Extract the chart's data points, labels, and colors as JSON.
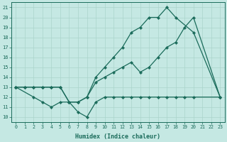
{
  "xlabel": "Humidex (Indice chaleur)",
  "bg_color": "#c5e8e3",
  "grid_color": "#aad4cc",
  "line_color": "#1a6b5a",
  "xlim": [
    -0.5,
    23.5
  ],
  "ylim": [
    9.5,
    21.5
  ],
  "xticks": [
    0,
    1,
    2,
    3,
    4,
    5,
    6,
    7,
    8,
    9,
    10,
    11,
    12,
    13,
    14,
    15,
    16,
    17,
    18,
    19,
    20,
    21,
    22,
    23
  ],
  "yticks": [
    10,
    11,
    12,
    13,
    14,
    15,
    16,
    17,
    18,
    19,
    20,
    21
  ],
  "line1_x": [
    0,
    1,
    2,
    3,
    4,
    5,
    6,
    7,
    8,
    9,
    10,
    11,
    12,
    13,
    14,
    15,
    16,
    17,
    18,
    20,
    23
  ],
  "line1_y": [
    13,
    13,
    13,
    13,
    13,
    13,
    11.5,
    11.5,
    12.0,
    14.0,
    15.0,
    16.0,
    17.0,
    18.5,
    19.0,
    20.0,
    20.0,
    21.0,
    20.0,
    18.5,
    12.0
  ],
  "line2_x": [
    0,
    1,
    2,
    3,
    4,
    5,
    6,
    7,
    8,
    9,
    10,
    11,
    12,
    13,
    14,
    15,
    16,
    17,
    18,
    19,
    20,
    23
  ],
  "line2_y": [
    13,
    13,
    13,
    13,
    13,
    13,
    11.5,
    11.5,
    12.0,
    13.5,
    14.0,
    14.5,
    15.0,
    15.5,
    14.5,
    15.0,
    16.0,
    17.0,
    17.5,
    19.0,
    20.0,
    12.0
  ],
  "line3_x": [
    0,
    2,
    3,
    4,
    5,
    6,
    7,
    8,
    9,
    10,
    11,
    12,
    13,
    14,
    15,
    16,
    17,
    18,
    19,
    20,
    23
  ],
  "line3_y": [
    13,
    12.0,
    11.5,
    11.0,
    11.5,
    11.5,
    10.5,
    10.0,
    11.5,
    12.0,
    12.0,
    12.0,
    12.0,
    12.0,
    12.0,
    12.0,
    12.0,
    12.0,
    12.0,
    12.0,
    12.0
  ]
}
